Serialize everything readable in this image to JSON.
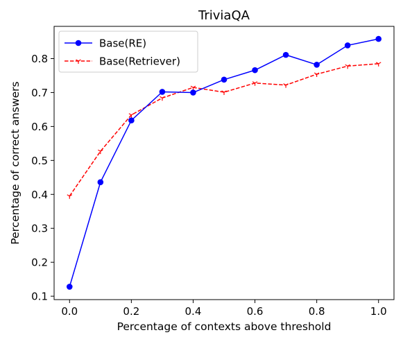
{
  "chart_data": {
    "type": "line",
    "title": "TriviaQA",
    "xlabel": "Percentage of contexts above threshold",
    "ylabel": "Percentage of correct answers",
    "x": [
      0.0,
      0.1,
      0.2,
      0.3,
      0.4,
      0.5,
      0.6,
      0.7,
      0.8,
      0.9,
      1.0
    ],
    "xlim": [
      -0.05,
      1.05
    ],
    "ylim": [
      0.09,
      0.895
    ],
    "xticks": [
      0.0,
      0.2,
      0.4,
      0.6,
      0.8,
      1.0
    ],
    "xtick_labels": [
      "0.0",
      "0.2",
      "0.4",
      "0.6",
      "0.8",
      "1.0"
    ],
    "yticks": [
      0.1,
      0.2,
      0.3,
      0.4,
      0.5,
      0.6,
      0.7,
      0.8
    ],
    "ytick_labels": [
      "0.1",
      "0.2",
      "0.3",
      "0.4",
      "0.5",
      "0.6",
      "0.7",
      "0.8"
    ],
    "grid": false,
    "legend_position": "top-left",
    "series": [
      {
        "name": "Base(RE)",
        "color": "#0000ff",
        "line_style": "solid",
        "marker": "circle",
        "values": [
          0.128,
          0.436,
          0.618,
          0.702,
          0.7,
          0.738,
          0.766,
          0.811,
          0.782,
          0.839,
          0.858
        ]
      },
      {
        "name": "Base(Retriever)",
        "color": "#ff0000",
        "line_style": "dashed",
        "marker": "tri-down",
        "values": [
          0.395,
          0.527,
          0.634,
          0.684,
          0.715,
          0.701,
          0.728,
          0.722,
          0.754,
          0.778,
          0.785
        ]
      }
    ]
  }
}
